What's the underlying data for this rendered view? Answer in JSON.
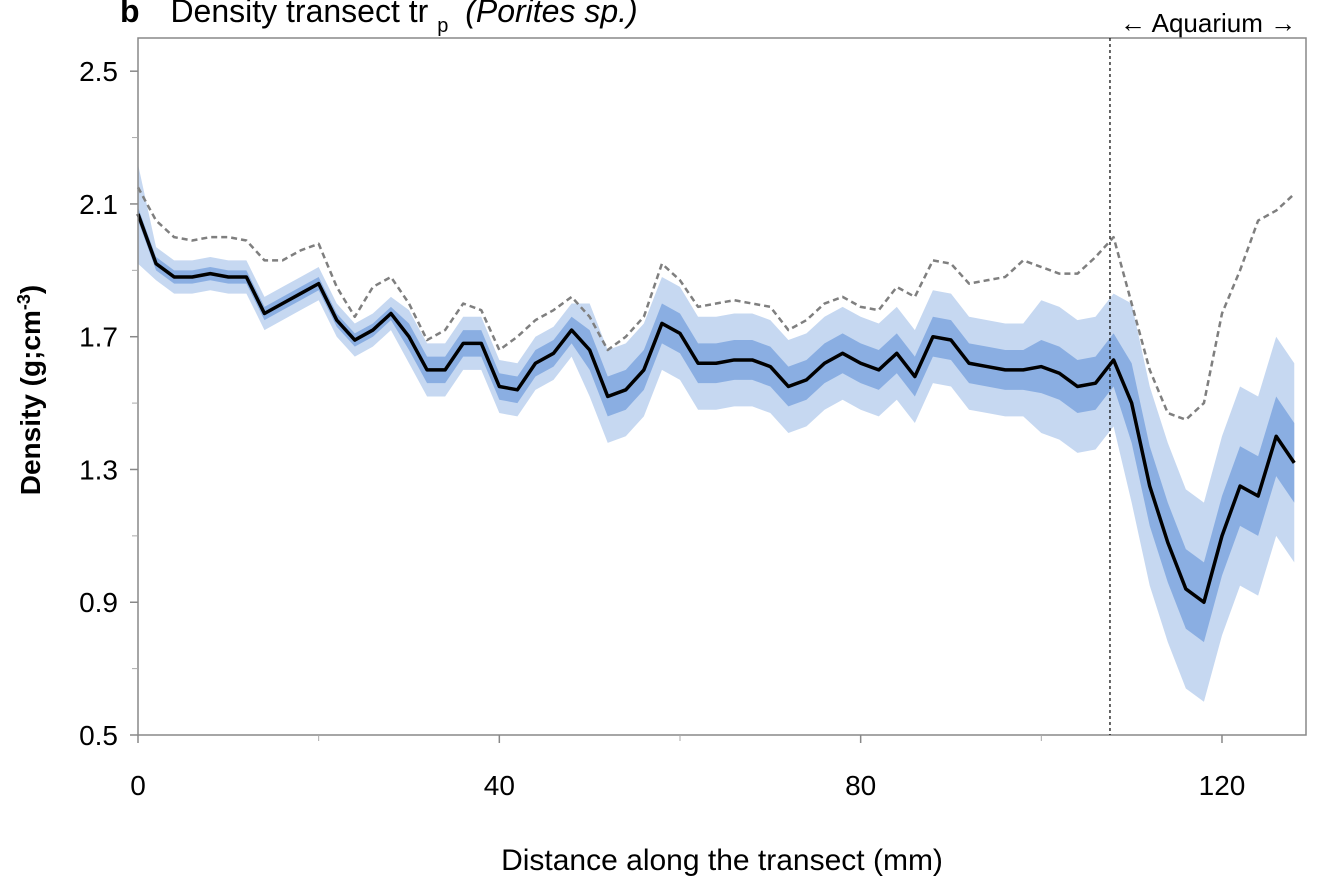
{
  "chart_data": {
    "type": "line",
    "title_letter": "b",
    "title": "Density transect tr",
    "title_subscript": "p",
    "title_species": "(Porites sp.)",
    "xlabel": "Distance along the transect (mm)",
    "ylabel": "Density (g;cm",
    "ylabel_superscript": "-3",
    "ylabel_end": ")",
    "annotation": "← Aquarium →",
    "vline": 107.6,
    "xlim": [
      0,
      129.3
    ],
    "ylim": [
      0.5,
      2.6
    ],
    "xticks": [
      0,
      40,
      80,
      120
    ],
    "xminorticks": [
      20,
      60,
      100
    ],
    "yticks": [
      0.5,
      0.9,
      1.3,
      1.7,
      2.1,
      2.5
    ],
    "yminorticks": [
      0.7,
      1.1,
      1.5,
      1.9,
      2.3
    ],
    "x": [
      0,
      2,
      4,
      6,
      8,
      10,
      12,
      14,
      16,
      18,
      20,
      22,
      24,
      26,
      28,
      30,
      32,
      34,
      36,
      38,
      40,
      42,
      44,
      46,
      48,
      50,
      52,
      54,
      56,
      58,
      60,
      62,
      64,
      66,
      68,
      70,
      72,
      74,
      76,
      78,
      80,
      82,
      84,
      86,
      88,
      90,
      92,
      94,
      96,
      98,
      100,
      102,
      104,
      106,
      108,
      110,
      112,
      114,
      116,
      118,
      120,
      122,
      124,
      126,
      128
    ],
    "bands": [
      {
        "color": "#c6d8f1",
        "upper": [
          2.22,
          1.97,
          1.93,
          1.93,
          1.94,
          1.93,
          1.93,
          1.82,
          1.85,
          1.88,
          1.91,
          1.8,
          1.74,
          1.77,
          1.82,
          1.78,
          1.68,
          1.68,
          1.76,
          1.76,
          1.63,
          1.62,
          1.7,
          1.73,
          1.8,
          1.8,
          1.66,
          1.68,
          1.74,
          1.88,
          1.85,
          1.76,
          1.76,
          1.77,
          1.77,
          1.75,
          1.69,
          1.71,
          1.76,
          1.79,
          1.76,
          1.74,
          1.79,
          1.72,
          1.84,
          1.83,
          1.76,
          1.75,
          1.74,
          1.74,
          1.81,
          1.79,
          1.75,
          1.76,
          1.83,
          1.8,
          1.55,
          1.38,
          1.24,
          1.2,
          1.4,
          1.55,
          1.52,
          1.7,
          1.62
        ],
        "lower": [
          1.92,
          1.87,
          1.83,
          1.83,
          1.84,
          1.83,
          1.83,
          1.72,
          1.75,
          1.78,
          1.81,
          1.7,
          1.64,
          1.67,
          1.72,
          1.62,
          1.52,
          1.52,
          1.6,
          1.6,
          1.47,
          1.46,
          1.54,
          1.57,
          1.64,
          1.52,
          1.38,
          1.4,
          1.46,
          1.6,
          1.57,
          1.48,
          1.48,
          1.49,
          1.49,
          1.47,
          1.41,
          1.43,
          1.48,
          1.51,
          1.48,
          1.46,
          1.51,
          1.44,
          1.56,
          1.55,
          1.48,
          1.47,
          1.46,
          1.46,
          1.41,
          1.39,
          1.35,
          1.36,
          1.43,
          1.2,
          0.95,
          0.78,
          0.64,
          0.6,
          0.8,
          0.95,
          0.92,
          1.1,
          1.02
        ]
      },
      {
        "color": "#8aaee2",
        "upper": [
          2.09,
          1.94,
          1.9,
          1.9,
          1.91,
          1.9,
          1.9,
          1.79,
          1.82,
          1.85,
          1.88,
          1.77,
          1.71,
          1.74,
          1.79,
          1.74,
          1.64,
          1.64,
          1.72,
          1.72,
          1.59,
          1.58,
          1.66,
          1.69,
          1.76,
          1.72,
          1.58,
          1.6,
          1.66,
          1.8,
          1.77,
          1.68,
          1.68,
          1.69,
          1.69,
          1.67,
          1.61,
          1.63,
          1.68,
          1.71,
          1.68,
          1.66,
          1.71,
          1.64,
          1.76,
          1.75,
          1.68,
          1.67,
          1.66,
          1.66,
          1.69,
          1.67,
          1.63,
          1.64,
          1.71,
          1.62,
          1.37,
          1.2,
          1.06,
          1.02,
          1.22,
          1.37,
          1.34,
          1.52,
          1.44
        ],
        "lower": [
          2.05,
          1.9,
          1.86,
          1.86,
          1.87,
          1.86,
          1.86,
          1.75,
          1.78,
          1.81,
          1.84,
          1.73,
          1.67,
          1.7,
          1.75,
          1.66,
          1.56,
          1.56,
          1.64,
          1.64,
          1.51,
          1.5,
          1.58,
          1.61,
          1.68,
          1.6,
          1.46,
          1.48,
          1.54,
          1.68,
          1.65,
          1.56,
          1.56,
          1.57,
          1.57,
          1.55,
          1.49,
          1.51,
          1.56,
          1.59,
          1.56,
          1.54,
          1.59,
          1.52,
          1.64,
          1.63,
          1.56,
          1.55,
          1.54,
          1.54,
          1.53,
          1.51,
          1.47,
          1.48,
          1.55,
          1.38,
          1.13,
          0.96,
          0.82,
          0.78,
          0.98,
          1.13,
          1.1,
          1.28,
          1.2
        ]
      }
    ],
    "series": [
      {
        "color": "#7f7f7f",
        "dashed": true,
        "values": [
          2.15,
          2.05,
          2.0,
          1.99,
          2.0,
          2.0,
          1.99,
          1.93,
          1.93,
          1.96,
          1.98,
          1.85,
          1.76,
          1.85,
          1.88,
          1.8,
          1.69,
          1.72,
          1.8,
          1.78,
          1.66,
          1.7,
          1.75,
          1.78,
          1.82,
          1.76,
          1.66,
          1.7,
          1.76,
          1.92,
          1.87,
          1.79,
          1.8,
          1.81,
          1.8,
          1.79,
          1.72,
          1.75,
          1.8,
          1.82,
          1.79,
          1.78,
          1.85,
          1.82,
          1.93,
          1.92,
          1.86,
          1.87,
          1.88,
          1.93,
          1.91,
          1.89,
          1.89,
          1.94,
          2.0,
          1.8,
          1.6,
          1.47,
          1.45,
          1.5,
          1.77,
          1.9,
          2.05,
          2.08,
          2.13
        ]
      },
      {
        "color": "#000000",
        "dashed": false,
        "values": [
          2.07,
          1.92,
          1.88,
          1.88,
          1.89,
          1.88,
          1.88,
          1.77,
          1.8,
          1.83,
          1.86,
          1.75,
          1.69,
          1.72,
          1.77,
          1.7,
          1.6,
          1.6,
          1.68,
          1.68,
          1.55,
          1.54,
          1.62,
          1.65,
          1.72,
          1.66,
          1.52,
          1.54,
          1.6,
          1.74,
          1.71,
          1.62,
          1.62,
          1.63,
          1.63,
          1.61,
          1.55,
          1.57,
          1.62,
          1.65,
          1.62,
          1.6,
          1.65,
          1.58,
          1.7,
          1.69,
          1.62,
          1.61,
          1.6,
          1.6,
          1.61,
          1.59,
          1.55,
          1.56,
          1.63,
          1.5,
          1.25,
          1.08,
          0.94,
          0.9,
          1.1,
          1.25,
          1.22,
          1.4,
          1.32
        ]
      }
    ]
  }
}
